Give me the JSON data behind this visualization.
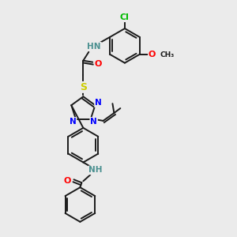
{
  "background_color": "#ebebeb",
  "bond_color": "#1a1a1a",
  "atom_colors": {
    "N": "#0000ff",
    "O": "#ff0000",
    "S": "#cccc00",
    "Cl": "#00bb00",
    "NH": "#4a9090",
    "C": "#1a1a1a"
  },
  "figsize": [
    3.0,
    3.0
  ],
  "dpi": 100
}
